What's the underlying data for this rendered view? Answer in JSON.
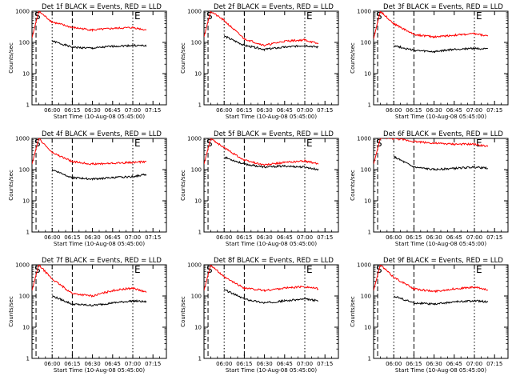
{
  "chart_data": [
    {
      "type": "line",
      "title": "Det 1f BLACK = Events, RED = LLD",
      "xlabel": "Start Time (10-Aug-08 05:45:00)",
      "ylabel": "Counts/sec",
      "yscale": "log",
      "ylim": [
        1,
        1000
      ],
      "y_ticks": [
        "1",
        "10",
        "100",
        "1000"
      ],
      "x_ticks": [
        "06:00",
        "06:15",
        "06:30",
        "06:45",
        "07:00",
        "07:15"
      ],
      "markers": {
        "start": "S",
        "end": "E"
      },
      "series": [
        {
          "color": "#000000",
          "x_minutes": [
            0,
            5,
            15,
            30,
            45,
            60,
            75,
            85
          ],
          "values": [
            null,
            null,
            110,
            70,
            65,
            75,
            80,
            78
          ]
        },
        {
          "color": "#ff0000",
          "x_minutes": [
            0,
            5,
            15,
            30,
            45,
            60,
            75,
            85
          ],
          "values": [
            140,
            1000,
            450,
            300,
            250,
            280,
            300,
            250
          ]
        }
      ]
    },
    {
      "type": "line",
      "title": "Det 2f BLACK = Events, RED = LLD",
      "xlabel": "Start Time (10-Aug-08 05:45:00)",
      "ylabel": "Counts/sec",
      "yscale": "log",
      "ylim": [
        1,
        1000
      ],
      "y_ticks": [
        "1",
        "10",
        "100",
        "1000"
      ],
      "x_ticks": [
        "06:00",
        "06:15",
        "06:30",
        "06:45",
        "07:00",
        "07:15"
      ],
      "markers": {
        "start": "S",
        "end": "E"
      },
      "series": [
        {
          "color": "#000000",
          "x_minutes": [
            0,
            5,
            15,
            30,
            45,
            60,
            75,
            85
          ],
          "values": [
            null,
            null,
            160,
            80,
            60,
            70,
            80,
            70
          ]
        },
        {
          "color": "#ff0000",
          "x_minutes": [
            0,
            5,
            15,
            30,
            45,
            60,
            75,
            85
          ],
          "values": [
            150,
            1000,
            500,
            130,
            80,
            110,
            120,
            90
          ]
        }
      ]
    },
    {
      "type": "line",
      "title": "Det 3f BLACK = Events, RED = LLD",
      "xlabel": "Start Time (10-Aug-08 05:45:00)",
      "ylabel": "Counts/sec",
      "yscale": "log",
      "ylim": [
        1,
        1000
      ],
      "y_ticks": [
        "1",
        "10",
        "100",
        "1000"
      ],
      "x_ticks": [
        "06:00",
        "06:15",
        "06:30",
        "06:45",
        "07:00",
        "07:15"
      ],
      "markers": {
        "start": "S",
        "end": "E"
      },
      "series": [
        {
          "color": "#000000",
          "x_minutes": [
            0,
            5,
            15,
            30,
            45,
            60,
            75,
            85
          ],
          "values": [
            null,
            null,
            80,
            55,
            50,
            60,
            65,
            60
          ]
        },
        {
          "color": "#ff0000",
          "x_minutes": [
            0,
            5,
            15,
            30,
            45,
            60,
            75,
            85
          ],
          "values": [
            130,
            1000,
            400,
            180,
            150,
            170,
            190,
            160
          ]
        }
      ]
    },
    {
      "type": "line",
      "title": "Det 4f BLACK = Events, RED = LLD",
      "xlabel": "Start Time (10-Aug-08 05:45:00)",
      "ylabel": "Counts/sec",
      "yscale": "log",
      "ylim": [
        1,
        1000
      ],
      "y_ticks": [
        "1",
        "10",
        "100",
        "1000"
      ],
      "x_ticks": [
        "06:00",
        "06:15",
        "06:30",
        "06:45",
        "07:00",
        "07:15"
      ],
      "markers": {
        "start": "S",
        "end": "E"
      },
      "series": [
        {
          "color": "#000000",
          "x_minutes": [
            0,
            5,
            15,
            30,
            45,
            60,
            75,
            85
          ],
          "values": [
            null,
            null,
            100,
            55,
            50,
            55,
            60,
            70
          ]
        },
        {
          "color": "#ff0000",
          "x_minutes": [
            0,
            5,
            15,
            30,
            45,
            60,
            75,
            85
          ],
          "values": [
            150,
            1000,
            350,
            180,
            150,
            160,
            170,
            180
          ]
        }
      ]
    },
    {
      "type": "line",
      "title": "Det 5f BLACK = Events, RED = LLD",
      "xlabel": "Start Time (10-Aug-08 05:45:00)",
      "ylabel": "Counts/sec",
      "yscale": "log",
      "ylim": [
        1,
        1000
      ],
      "y_ticks": [
        "1",
        "10",
        "100",
        "1000"
      ],
      "x_ticks": [
        "06:00",
        "06:15",
        "06:30",
        "06:45",
        "07:00",
        "07:15"
      ],
      "markers": {
        "start": "S",
        "end": "E"
      },
      "series": [
        {
          "color": "#000000",
          "x_minutes": [
            0,
            5,
            15,
            30,
            45,
            60,
            75,
            85
          ],
          "values": [
            null,
            null,
            250,
            150,
            120,
            130,
            120,
            100
          ]
        },
        {
          "color": "#ff0000",
          "x_minutes": [
            0,
            5,
            15,
            30,
            45,
            60,
            75,
            85
          ],
          "values": [
            150,
            1000,
            500,
            200,
            140,
            170,
            190,
            150
          ]
        }
      ]
    },
    {
      "type": "line",
      "title": "Det 6f BLACK = Events, RED = LLD",
      "xlabel": "Start Time (10-Aug-08 05:45:00)",
      "ylabel": "Counts/sec",
      "yscale": "log",
      "ylim": [
        1,
        1000
      ],
      "y_ticks": [
        "1",
        "10",
        "100",
        "1000"
      ],
      "x_ticks": [
        "06:00",
        "06:15",
        "06:30",
        "06:45",
        "07:00",
        "07:15"
      ],
      "markers": {
        "start": "S",
        "end": "E"
      },
      "series": [
        {
          "color": "#000000",
          "x_minutes": [
            0,
            5,
            15,
            30,
            45,
            60,
            75,
            85
          ],
          "values": [
            null,
            null,
            260,
            120,
            100,
            110,
            120,
            110
          ]
        },
        {
          "color": "#ff0000",
          "x_minutes": [
            0,
            5,
            15,
            30,
            45,
            60,
            75,
            85
          ],
          "values": [
            150,
            1000,
            1000,
            800,
            700,
            650,
            650,
            550
          ]
        }
      ]
    },
    {
      "type": "line",
      "title": "Det 7f BLACK = Events, RED = LLD",
      "xlabel": "Start Time (10-Aug-08 05:45:00)",
      "ylabel": "Counts/sec",
      "yscale": "log",
      "ylim": [
        1,
        1000
      ],
      "y_ticks": [
        "1",
        "10",
        "100",
        "1000"
      ],
      "x_ticks": [
        "06:00",
        "06:15",
        "06:30",
        "06:45",
        "07:00",
        "07:15"
      ],
      "markers": {
        "start": "S",
        "end": "E"
      },
      "series": [
        {
          "color": "#000000",
          "x_minutes": [
            0,
            5,
            15,
            30,
            45,
            60,
            75,
            85
          ],
          "values": [
            null,
            null,
            100,
            55,
            50,
            60,
            70,
            65
          ]
        },
        {
          "color": "#ff0000",
          "x_minutes": [
            0,
            5,
            15,
            30,
            45,
            60,
            75,
            85
          ],
          "values": [
            150,
            1000,
            350,
            120,
            100,
            150,
            180,
            130
          ]
        }
      ]
    },
    {
      "type": "line",
      "title": "Det 8f BLACK = Events, RED = LLD",
      "xlabel": "Start Time (10-Aug-08 05:45:00)",
      "ylabel": "Counts/sec",
      "yscale": "log",
      "ylim": [
        1,
        1000
      ],
      "y_ticks": [
        "1",
        "10",
        "100",
        "1000"
      ],
      "x_ticks": [
        "06:00",
        "06:15",
        "06:30",
        "06:45",
        "07:00",
        "07:15"
      ],
      "markers": {
        "start": "S",
        "end": "E"
      },
      "series": [
        {
          "color": "#000000",
          "x_minutes": [
            0,
            5,
            15,
            30,
            45,
            60,
            75,
            85
          ],
          "values": [
            null,
            null,
            160,
            80,
            60,
            70,
            80,
            70
          ]
        },
        {
          "color": "#ff0000",
          "x_minutes": [
            0,
            5,
            15,
            30,
            45,
            60,
            75,
            85
          ],
          "values": [
            150,
            1000,
            400,
            180,
            150,
            180,
            200,
            170
          ]
        }
      ]
    },
    {
      "type": "line",
      "title": "Det 9f BLACK = Events, RED = LLD",
      "xlabel": "Start Time (10-Aug-08 05:45:00)",
      "ylabel": "Counts/sec",
      "yscale": "log",
      "ylim": [
        1,
        1000
      ],
      "y_ticks": [
        "1",
        "10",
        "100",
        "1000"
      ],
      "x_ticks": [
        "06:00",
        "06:15",
        "06:30",
        "06:45",
        "07:00",
        "07:15"
      ],
      "markers": {
        "start": "S",
        "end": "E"
      },
      "series": [
        {
          "color": "#000000",
          "x_minutes": [
            0,
            5,
            15,
            30,
            45,
            60,
            75,
            85
          ],
          "values": [
            null,
            null,
            100,
            60,
            55,
            65,
            70,
            65
          ]
        },
        {
          "color": "#ff0000",
          "x_minutes": [
            0,
            5,
            15,
            30,
            45,
            60,
            75,
            85
          ],
          "values": [
            150,
            1000,
            400,
            170,
            140,
            170,
            190,
            160
          ]
        }
      ]
    }
  ]
}
